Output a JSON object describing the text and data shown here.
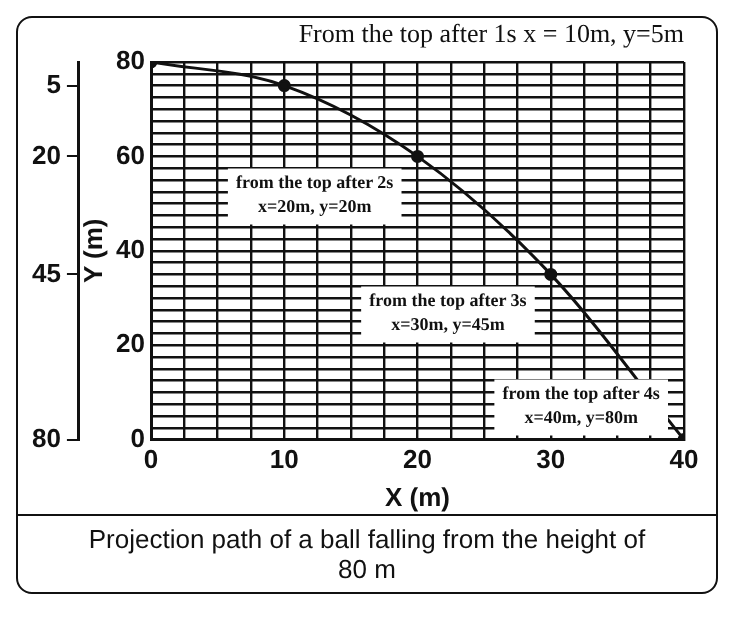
{
  "chart_data": {
    "type": "line",
    "xlabel": "X (m)",
    "ylabel": "Y (m)",
    "x": [
      0,
      10,
      20,
      30,
      40
    ],
    "series": [
      {
        "color": "#111111",
        "values": [
          80,
          75,
          60,
          35,
          0
        ]
      }
    ],
    "xlim": [
      0,
      40
    ],
    "ylim": [
      0,
      80
    ],
    "xticks": [
      0,
      {
        "value": 2.5,
        "label": null
      },
      {
        "value": 5,
        "label": null
      },
      {
        "value": 7.5,
        "label": null
      },
      10,
      {
        "value": 12.5,
        "label": null
      },
      {
        "value": 15,
        "label": null
      },
      {
        "value": 17.5,
        "label": null
      },
      20,
      {
        "value": 22.5,
        "label": null
      },
      {
        "value": 25,
        "label": null
      },
      {
        "value": 27.5,
        "label": null
      },
      30,
      {
        "value": 32.5,
        "label": null
      },
      {
        "value": 35,
        "label": null
      },
      {
        "value": 37.5,
        "label": null
      },
      40
    ],
    "yticks": [
      0,
      {
        "value": 2.5,
        "label": null
      },
      {
        "value": 5,
        "label": null
      },
      {
        "value": 7.5,
        "label": null
      },
      {
        "value": 10,
        "label": null
      },
      {
        "value": 12.5,
        "label": null
      },
      {
        "value": 15,
        "label": null
      },
      {
        "value": 17.5,
        "label": null
      },
      20,
      {
        "value": 22.5,
        "label": null
      },
      {
        "value": 25,
        "label": null
      },
      {
        "value": 27.5,
        "label": null
      },
      {
        "value": 30,
        "label": null
      },
      {
        "value": 32.5,
        "label": null
      },
      {
        "value": 35,
        "label": null
      },
      {
        "value": 37.5,
        "label": null
      },
      40,
      {
        "value": 42.5,
        "label": null
      },
      {
        "value": 45,
        "label": null
      },
      {
        "value": 47.5,
        "label": null
      },
      {
        "value": 50,
        "label": null
      },
      {
        "value": 52.5,
        "label": null
      },
      {
        "value": 55,
        "label": null
      },
      {
        "value": 57.5,
        "label": null
      },
      60,
      {
        "value": 62.5,
        "label": null
      },
      {
        "value": 65,
        "label": null
      },
      {
        "value": 67.5,
        "label": null
      },
      {
        "value": 70,
        "label": null
      },
      {
        "value": 72.5,
        "label": null
      },
      {
        "value": 75,
        "label": null
      },
      {
        "value": 77.5,
        "label": null
      },
      80
    ],
    "y2lim": [
      80,
      0
    ],
    "y2ticks": [
      5,
      20,
      45,
      80
    ],
    "grid": true,
    "marker": "circle",
    "line_style": "solid",
    "legend": false,
    "annotations": [
      {
        "text": "From the top after 1s x = 10m, y=5m",
        "x": 10,
        "y": 75
      },
      {
        "text": "from the top after 2s\nx=20m, y=20m",
        "x": 20,
        "y": 60
      },
      {
        "text": "from the top after 3s\nx=30m, y=45m",
        "x": 30,
        "y": 35
      },
      {
        "text": "from the top after 4s\nx=40m, y=80m",
        "x": 40,
        "y": 0
      },
      "Projection path of a ball falling from the height of 80 m"
    ]
  }
}
